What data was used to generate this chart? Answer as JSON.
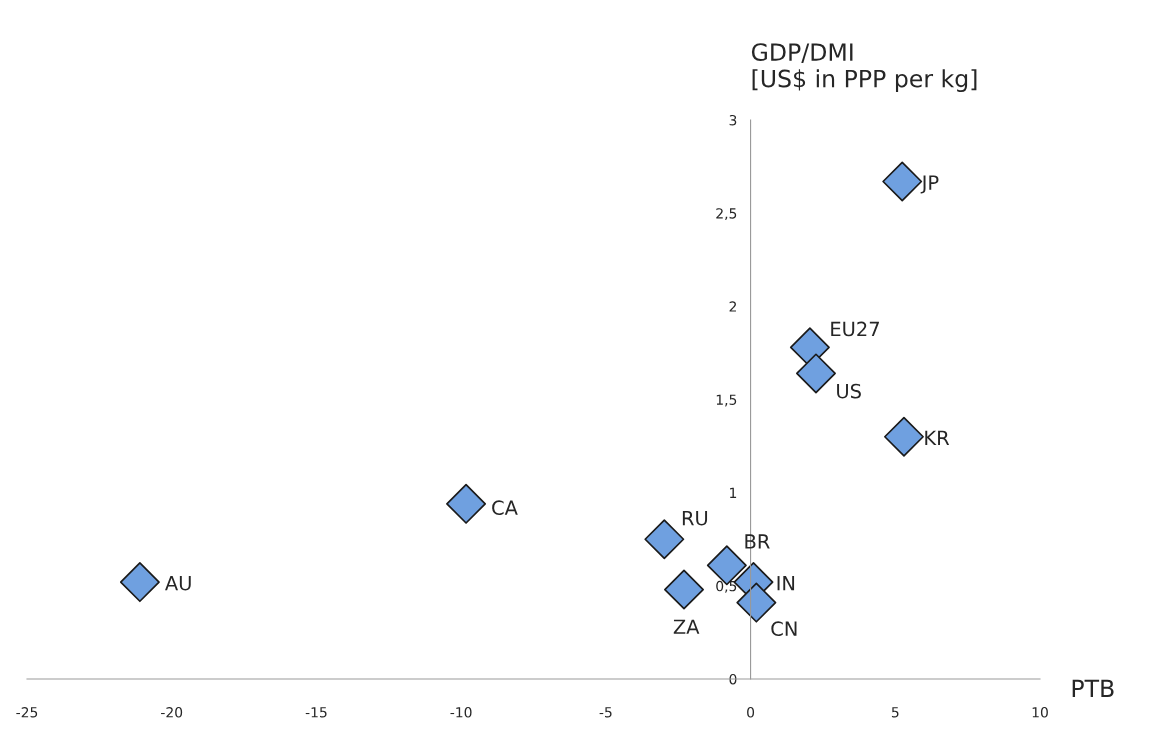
{
  "chart_data": {
    "type": "scatter",
    "ylabel": "GDP/DMI\n[US$ in PPP per kg]",
    "xlabel": "PTB",
    "series": [
      {
        "color": "#6fa0e0",
        "x": [
          -21.1,
          -9.83,
          -2.98,
          -2.3,
          -0.82,
          0.1,
          0.2,
          2.05,
          2.26,
          5.3,
          5.24
        ],
        "values": [
          0.52,
          0.94,
          0.75,
          0.48,
          0.61,
          0.52,
          0.41,
          1.78,
          1.64,
          1.3,
          2.67
        ]
      }
    ],
    "annotations": [
      {
        "text": "AU",
        "x": -21.1,
        "y": 0.52
      },
      {
        "text": "CA",
        "x": -9.83,
        "y": 0.94
      },
      {
        "text": "RU",
        "x": -2.98,
        "y": 0.75
      },
      {
        "text": "ZA",
        "x": -2.3,
        "y": 0.48
      },
      {
        "text": "BR",
        "x": -0.82,
        "y": 0.61
      },
      {
        "text": "IN",
        "x": 0.1,
        "y": 0.52
      },
      {
        "text": "CN",
        "x": 0.2,
        "y": 0.41
      },
      {
        "text": "EU27",
        "x": 2.05,
        "y": 1.78
      },
      {
        "text": "US",
        "x": 2.26,
        "y": 1.64
      },
      {
        "text": "KR",
        "x": 5.3,
        "y": 1.3
      },
      {
        "text": "JP",
        "x": 5.24,
        "y": 2.67
      }
    ],
    "xlim": [
      -25,
      10
    ],
    "xticks": [
      -25,
      -20,
      -15,
      -10,
      -5,
      0,
      5,
      10
    ],
    "ylim": [
      0,
      3
    ],
    "yticks": [
      0,
      {
        "value": 0.5,
        "label": "0,5"
      },
      1,
      {
        "value": 1.5,
        "label": "1,5"
      },
      2,
      {
        "value": 2.5,
        "label": "2,5"
      },
      3
    ],
    "marker": "diamond",
    "grid": false,
    "legend": false
  }
}
